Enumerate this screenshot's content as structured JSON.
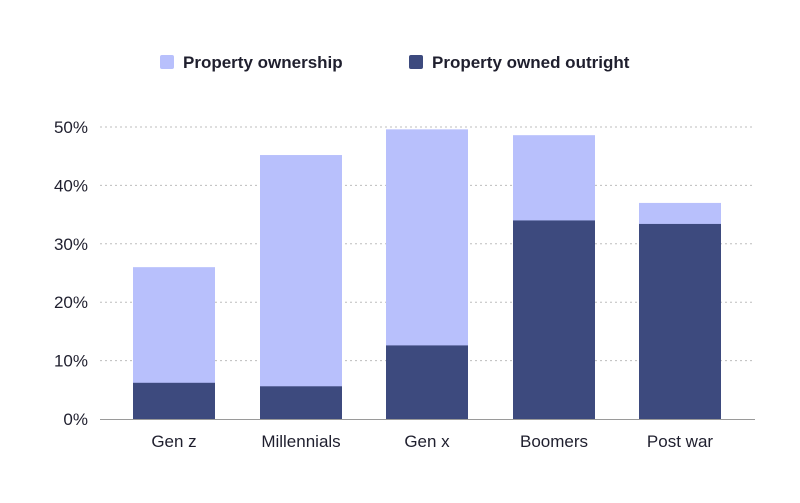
{
  "colors": {
    "ownership": "#b8c0fc",
    "outright": "#3d4a7e",
    "text": "#1f1f2e"
  },
  "chart_data": {
    "type": "bar",
    "stacked": "overlay",
    "title": "",
    "xlabel": "",
    "ylabel": "",
    "ylim": [
      0,
      50
    ],
    "y_ticks": [
      0,
      10,
      20,
      30,
      40,
      50
    ],
    "y_tick_labels": [
      "0%",
      "10%",
      "20%",
      "30%",
      "40%",
      "50%"
    ],
    "grid": true,
    "legend_position": "top-center",
    "categories": [
      "Gen z",
      "Millennials",
      "Gen x",
      "Boomers",
      "Post war"
    ],
    "series": [
      {
        "name": "Property ownership",
        "color_key": "ownership",
        "values": [
          26,
          45.2,
          49.6,
          48.6,
          37
        ]
      },
      {
        "name": "Property owned outright",
        "color_key": "outright",
        "values": [
          6.2,
          5.6,
          12.6,
          34,
          33.4
        ]
      }
    ]
  }
}
